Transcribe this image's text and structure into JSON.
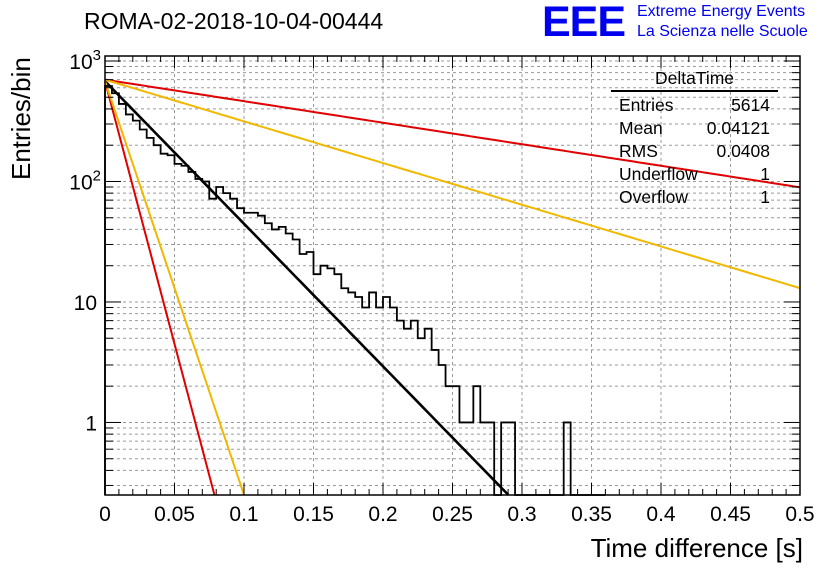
{
  "title": "ROMA-02-2018-10-04-00444",
  "logo": {
    "mark": "EEE",
    "line1": "Extreme Energy Events",
    "line2": "La Scienza nelle Scuole",
    "color": "#0000ee"
  },
  "stats_box": {
    "title": "DeltaTime",
    "rows": [
      {
        "label": "Entries",
        "value": "5614"
      },
      {
        "label": "Mean",
        "value": "0.04121"
      },
      {
        "label": "RMS",
        "value": "0.0408"
      },
      {
        "label": "Underflow",
        "value": "1"
      },
      {
        "label": "Overflow",
        "value": "1"
      }
    ]
  },
  "chart_data": {
    "type": "histogram",
    "title": "ROMA-02-2018-10-04-00444",
    "xlabel": "Time difference [s]",
    "ylabel": "Entries/bin",
    "xlim": [
      0,
      0.5
    ],
    "ylim": [
      0.25,
      1100
    ],
    "yscale": "log",
    "grid": true,
    "x_ticks": [
      "0",
      "0.05",
      "0.1",
      "0.15",
      "0.2",
      "0.25",
      "0.3",
      "0.35",
      "0.4",
      "0.45",
      "0.5"
    ],
    "y_ticks": [
      "1",
      "10",
      "10^2",
      "10^3"
    ],
    "bin_width": 0.005,
    "bins_x": [
      0,
      0.005,
      0.01,
      0.015,
      0.02,
      0.025,
      0.03,
      0.035,
      0.04,
      0.045,
      0.05,
      0.055,
      0.06,
      0.065,
      0.07,
      0.075,
      0.08,
      0.085,
      0.09,
      0.095,
      0.1,
      0.105,
      0.11,
      0.115,
      0.12,
      0.125,
      0.13,
      0.135,
      0.14,
      0.145,
      0.15,
      0.155,
      0.16,
      0.165,
      0.17,
      0.175,
      0.18,
      0.185,
      0.19,
      0.195,
      0.2,
      0.205,
      0.21,
      0.215,
      0.22,
      0.225,
      0.23,
      0.235,
      0.24,
      0.245,
      0.25,
      0.255,
      0.26,
      0.265,
      0.27,
      0.275,
      0.28,
      0.285,
      0.29,
      0.295,
      0.3,
      0.305,
      0.31,
      0.315,
      0.32,
      0.325,
      0.33,
      0.335,
      0.34,
      0.345,
      0.35,
      0.355
    ],
    "bins_y": [
      620,
      540,
      440,
      360,
      320,
      270,
      230,
      200,
      170,
      165,
      140,
      135,
      120,
      105,
      100,
      72,
      90,
      80,
      72,
      60,
      55,
      55,
      52,
      45,
      40,
      42,
      37,
      33,
      25,
      26,
      17,
      20,
      19,
      17,
      13,
      12,
      11,
      9,
      12,
      9,
      11,
      9,
      7,
      6,
      7,
      5,
      6,
      4,
      3,
      2,
      2,
      1,
      1,
      2,
      1,
      1,
      0,
      1,
      1,
      0,
      0,
      0,
      0,
      0,
      0,
      0,
      1,
      0,
      0,
      0,
      0,
      0
    ],
    "series": [
      {
        "name": "exponential fit",
        "color": "#000000",
        "y0": 680,
        "tau": 0.0367,
        "x_range": [
          0,
          0.325
        ]
      },
      {
        "name": "red slow",
        "color": "#e00000",
        "y0": 700,
        "tau": 0.243,
        "x_range": [
          0,
          0.5
        ]
      },
      {
        "name": "yellow slow",
        "color": "#f0b800",
        "y0": 700,
        "tau": 0.1255,
        "x_range": [
          0,
          0.5
        ]
      },
      {
        "name": "red fast",
        "color": "#e00000",
        "y0": 680,
        "tau": 0.00996,
        "x_range": [
          0,
          0.08
        ]
      },
      {
        "name": "yellow fast",
        "color": "#f0b800",
        "y0": 680,
        "tau": 0.01265,
        "x_range": [
          0,
          0.1
        ]
      }
    ]
  }
}
